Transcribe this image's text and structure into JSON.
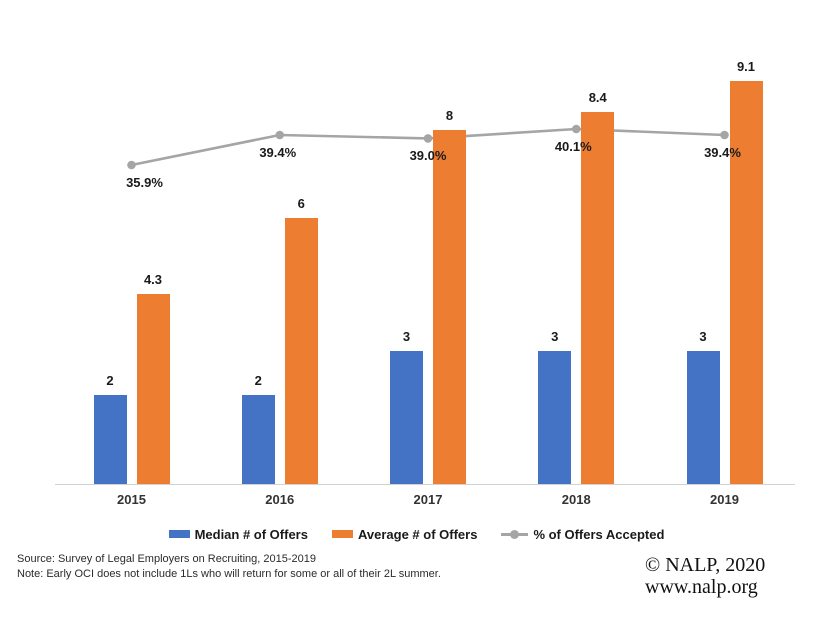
{
  "chart_data": {
    "type": "bar",
    "subtype": "bar-line-combo",
    "title": "",
    "xlabel": "",
    "ylabel": "",
    "categories": [
      "2015",
      "2016",
      "2017",
      "2018",
      "2019"
    ],
    "series": [
      {
        "name": "Median # of Offers",
        "type": "bar",
        "color": "#4472C4",
        "values": [
          2,
          2,
          3,
          3,
          3
        ],
        "labels": [
          "2",
          "2",
          "3",
          "3",
          "3"
        ]
      },
      {
        "name": "Average # of Offers",
        "type": "bar",
        "color": "#ED7D31",
        "values": [
          4.3,
          6,
          8,
          8.4,
          9.1
        ],
        "labels": [
          "4.3",
          "6",
          "8",
          "8.4",
          "9.1"
        ]
      },
      {
        "name": "% of Offers Accepted",
        "type": "line",
        "color": "#A5A5A5",
        "values": [
          35.9,
          39.4,
          39.0,
          40.1,
          39.4
        ],
        "labels": [
          "35.9%",
          "39.4%",
          "39.0%",
          "40.1%",
          "39.4%"
        ]
      }
    ],
    "legend_position": "bottom",
    "grid": false,
    "primary_axis": {
      "labels_visible": false,
      "implied_range": [
        0,
        10
      ]
    },
    "secondary_axis": {
      "labels_visible": false,
      "unit": "%"
    }
  },
  "footer": {
    "source": "Source: Survey of Legal Employers on Recruiting, 2015-2019",
    "note": "Note: Early OCI does not include 1Ls who will return for some or all of their 2L summer."
  },
  "branding": {
    "copyright": "© NALP, 2020",
    "website": "www.nalp.org"
  }
}
